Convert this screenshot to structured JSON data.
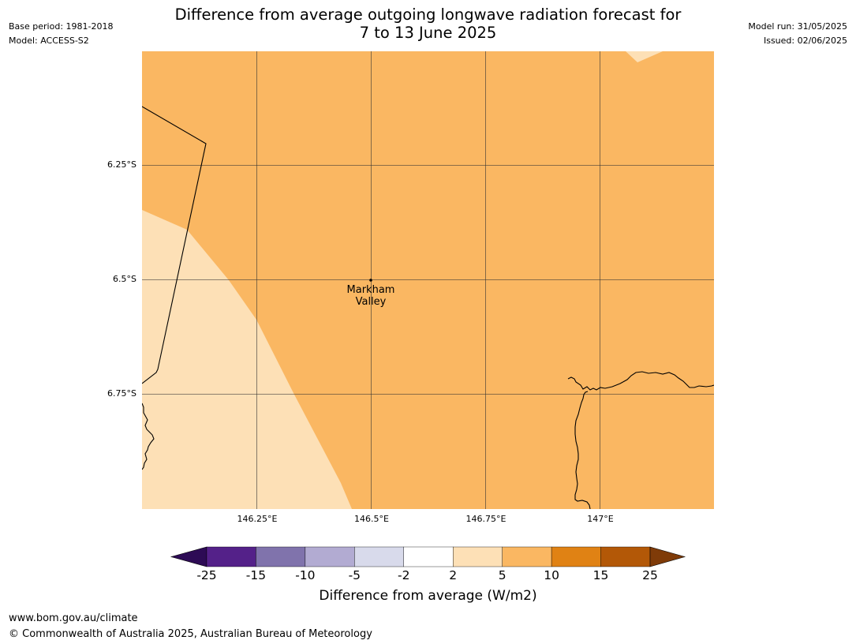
{
  "title": {
    "line1": "Difference from average outgoing longwave radiation forecast for",
    "line2": "7 to 13 June 2025"
  },
  "meta_left": {
    "base_period": "Base period: 1981-2018",
    "model": "Model: ACCESS-S2"
  },
  "meta_right": {
    "model_run": "Model run: 31/05/2025",
    "issued": "Issued: 02/06/2025"
  },
  "map": {
    "lat_labels": [
      "6.25°S",
      "6.5°S",
      "6.75°S"
    ],
    "lon_labels": [
      "146.25°E",
      "146.5°E",
      "146.75°E",
      "147°E"
    ],
    "place": {
      "name_line1": "Markham",
      "name_line2": "Valley",
      "lon": 146.5,
      "lat": -6.5
    },
    "colors": {
      "range_2_to_5": "#fde0b6",
      "range_5_to_10": "#fab762",
      "gridline": "#333333",
      "coastline": "#000000"
    }
  },
  "colorbar": {
    "label": "Difference from average (W/m2)",
    "ticks": [
      "-25",
      "-15",
      "-10",
      "-5",
      "-2",
      "2",
      "5",
      "10",
      "15",
      "25"
    ],
    "colors": [
      "#2d0b55",
      "#542189",
      "#8073ac",
      "#b2abd2",
      "#d8daeb",
      "#ffffff",
      "#fde0b6",
      "#fab762",
      "#e08214",
      "#b35807",
      "#7f3b08"
    ]
  },
  "footer": {
    "url": "www.bom.gov.au/climate",
    "copyright": "© Commonwealth of Australia 2025, Australian Bureau of Meteorology"
  }
}
